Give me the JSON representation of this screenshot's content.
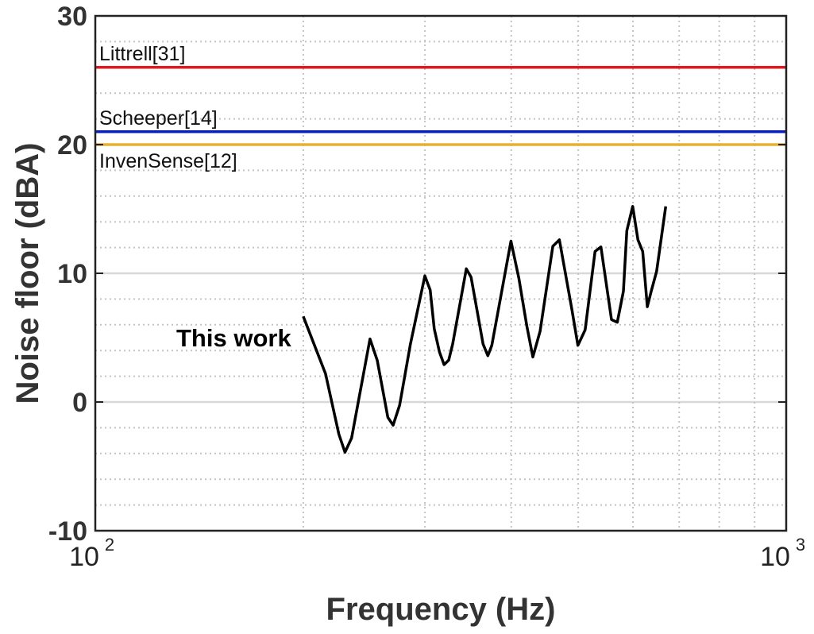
{
  "chart_data": {
    "type": "line",
    "title": "",
    "xlabel": "Frequency (Hz)",
    "ylabel": "Noise floor (dBA)",
    "xscale": "log",
    "xlim": [
      100,
      1000
    ],
    "ylim": [
      -10,
      30
    ],
    "grid": true,
    "x_ticks": [
      {
        "value": 100,
        "base": "10",
        "exp": "2"
      },
      {
        "value": 1000,
        "base": "10",
        "exp": "3"
      }
    ],
    "y_ticks": [
      {
        "value": -10,
        "label": "-10"
      },
      {
        "value": 0,
        "label": "0"
      },
      {
        "value": 10,
        "label": "10"
      },
      {
        "value": 20,
        "label": "20"
      },
      {
        "value": 30,
        "label": "30"
      }
    ],
    "reference_lines": [
      {
        "name": "Littrell[31]",
        "value": 26,
        "color": "#e3161b",
        "label_position": "above"
      },
      {
        "name": "Scheeper[14]",
        "value": 21,
        "color": "#0a1fb8",
        "label_position": "above"
      },
      {
        "name": "InvenSense[12]",
        "value": 20,
        "color": "#e8b030",
        "label_position": "below"
      }
    ],
    "series": [
      {
        "name": "This work",
        "color": "#000000",
        "x": [
          200,
          215.4,
          225.2,
          229.8,
          234.9,
          249.8,
          255.9,
          265.1,
          269.8,
          275.7,
          285.8,
          299.9,
          305.3,
          309.4,
          314.8,
          319.8,
          324.7,
          329.0,
          344.4,
          349.9,
          364.1,
          370.0,
          374.9,
          399.6,
          410.3,
          421.3,
          429.9,
          440.3,
          459.4,
          469.6,
          489.5,
          499.5,
          511.6,
          528.9,
          539.3,
          558.6,
          569.5,
          581.3,
          587.9,
          599.5,
          610.1,
          619.9,
          629.4,
          637.7,
          649.2,
          669.4
        ],
        "y": [
          6.65,
          2.2,
          -2.5,
          -3.9,
          -2.8,
          4.9,
          3.25,
          -1.2,
          -1.8,
          -0.25,
          4.5,
          9.8,
          8.7,
          5.7,
          3.9,
          2.9,
          3.25,
          4.5,
          10.35,
          9.7,
          4.5,
          3.6,
          4.4,
          12.5,
          9.6,
          5.9,
          3.5,
          5.5,
          12.1,
          12.6,
          7.2,
          4.4,
          5.6,
          11.7,
          12.05,
          6.4,
          6.2,
          8.6,
          13.3,
          15.2,
          12.6,
          11.7,
          7.4,
          8.6,
          10.15,
          15.2
        ]
      }
    ]
  }
}
